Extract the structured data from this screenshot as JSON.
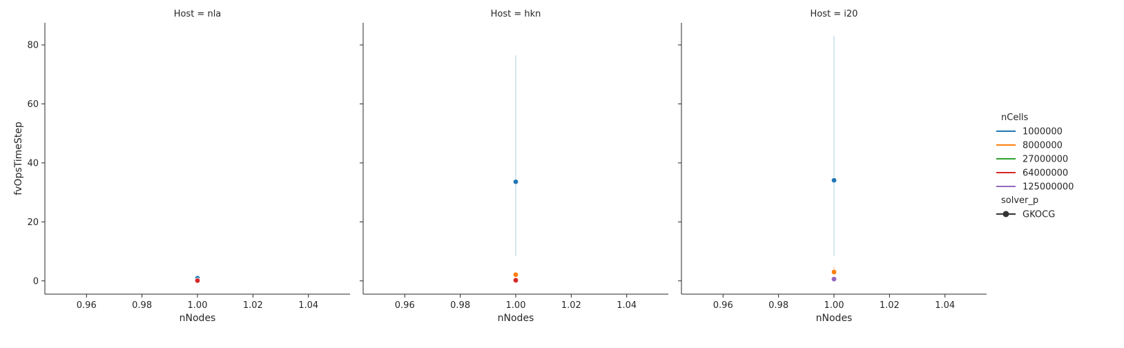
{
  "chart_data": {
    "type": "line",
    "facet_variable": "Host",
    "facets": [
      {
        "title": "Host = nla",
        "series": [
          {
            "ncells": "1000000",
            "x": 1.0,
            "y": 0.9,
            "ci": [
              0.5,
              1.3
            ]
          },
          {
            "ncells": "64000000",
            "x": 1.0,
            "y": 0.1,
            "ci": [
              0.05,
              0.15
            ]
          }
        ]
      },
      {
        "title": "Host = hkn",
        "series": [
          {
            "ncells": "1000000",
            "x": 1.0,
            "y": 33.6,
            "ci": [
              8.5,
              76.5
            ]
          },
          {
            "ncells": "8000000",
            "x": 1.0,
            "y": 2.1,
            "ci": [
              1.5,
              3.0
            ]
          },
          {
            "ncells": "64000000",
            "x": 1.0,
            "y": 0.2,
            "ci": [
              0.1,
              0.3
            ]
          }
        ]
      },
      {
        "title": "Host = i20",
        "series": [
          {
            "ncells": "1000000",
            "x": 1.0,
            "y": 34.1,
            "ci": [
              8.5,
              83.0
            ]
          },
          {
            "ncells": "8000000",
            "x": 1.0,
            "y": 3.0,
            "ci": [
              2.0,
              5.0
            ]
          },
          {
            "ncells": "125000000",
            "x": 1.0,
            "y": 0.6,
            "ci": [
              0.3,
              0.9
            ]
          }
        ]
      }
    ],
    "xlabel": "nNodes",
    "ylabel": "fvOpsTimeStep",
    "xlim": [
      0.945,
      1.055
    ],
    "ylim": [
      -4.5,
      87.5
    ],
    "x_ticks": [
      "0.96",
      "0.98",
      "1.00",
      "1.02",
      "1.04"
    ],
    "x_tick_values": [
      0.96,
      0.98,
      1.0,
      1.02,
      1.04
    ],
    "y_ticks": [
      "0",
      "20",
      "40",
      "60",
      "80"
    ],
    "y_tick_values": [
      0,
      20,
      40,
      60,
      80
    ],
    "grid": false,
    "legend": {
      "placement": "right",
      "hue_title": "nCells",
      "hue_entries": [
        {
          "label": "1000000",
          "color": "#1f77b4"
        },
        {
          "label": "8000000",
          "color": "#ff7f0e"
        },
        {
          "label": "27000000",
          "color": "#2ca02c"
        },
        {
          "label": "64000000",
          "color": "#d62728"
        },
        {
          "label": "125000000",
          "color": "#9467bd"
        }
      ],
      "style_title": "solver_p",
      "style_entries": [
        {
          "label": "GKOCG",
          "color": "#333333",
          "marker": "circle"
        }
      ]
    }
  }
}
